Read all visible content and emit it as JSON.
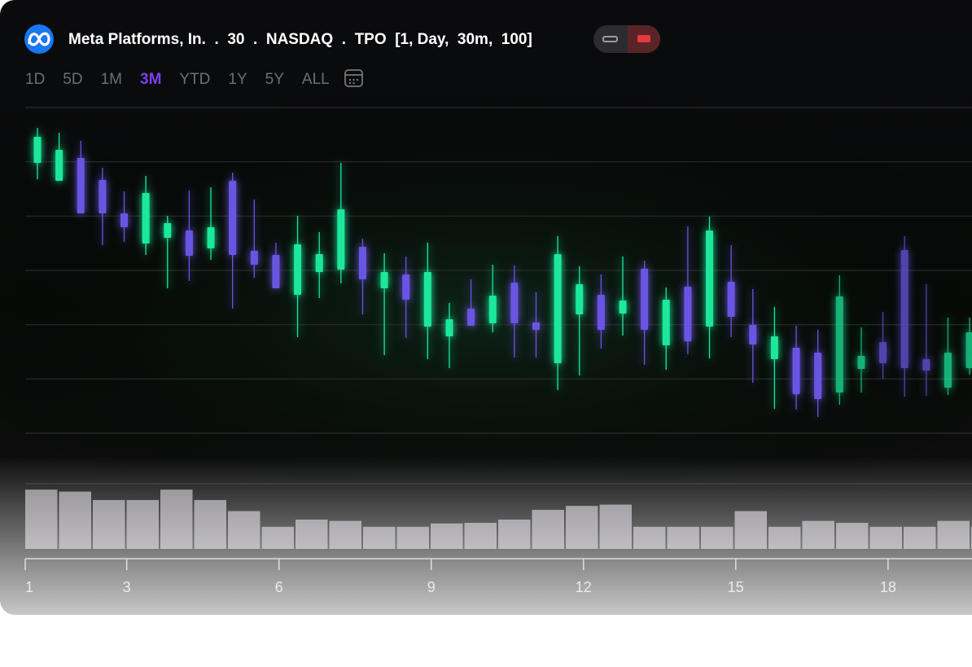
{
  "header": {
    "title": "Meta Platforms, In.  .  30  .  NASDAQ  .  TPO  [1, Day,  30m,  100]",
    "ranges": [
      "1D",
      "5D",
      "1M",
      "3M",
      "YTD",
      "1Y",
      "5Y",
      "ALL"
    ],
    "selected_range": "3M"
  },
  "chart_data": [
    {
      "type": "candlestick",
      "up_color": "#1ee89c",
      "down_color": "#6b55e3",
      "ylim": [
        0,
        100
      ],
      "grid": true,
      "open": [
        83,
        77.5,
        84.5,
        77.75,
        67.5,
        58.25,
        60,
        62.25,
        56.75,
        77.5,
        56,
        54.75,
        42.5,
        49.5,
        50.25,
        57.25,
        44.5,
        48.75,
        32.75,
        29.75,
        38.25,
        33.75,
        46.25,
        34,
        21.5,
        36.5,
        42.5,
        36.75,
        50.5,
        27,
        45,
        32.75,
        46.5,
        33.25,
        22.75,
        26.25,
        24.75,
        12.5,
        19.75,
        28,
        56.25,
        22.75,
        14,
        20
      ],
      "high": [
        93.75,
        92.25,
        89.75,
        81.5,
        74.25,
        79,
        66.75,
        74.5,
        75.5,
        80,
        71.75,
        58.5,
        66.75,
        61.75,
        83,
        59.75,
        55.25,
        54.25,
        58.5,
        40,
        47.25,
        51.75,
        51.5,
        43.25,
        60.5,
        51.25,
        48.75,
        54.25,
        53,
        44.75,
        63.5,
        66.5,
        57.75,
        44.25,
        38.75,
        33,
        31.75,
        48.5,
        32.5,
        37.25,
        60.5,
        45.75,
        35.5,
        35.5
      ],
      "low": [
        78,
        77.5,
        67.5,
        57.75,
        58.75,
        54.75,
        44.5,
        46.75,
        53.25,
        38.25,
        47.75,
        44.5,
        29.5,
        41.5,
        46,
        36.5,
        24,
        29.25,
        22.75,
        20,
        33,
        31,
        23.25,
        23.25,
        13.25,
        17.75,
        26,
        30,
        21,
        19.5,
        24.25,
        23,
        29.5,
        15.5,
        7.5,
        7.25,
        5,
        8.75,
        12.5,
        16.75,
        11.25,
        11.5,
        11.75,
        18
      ],
      "close": [
        91,
        87,
        67.5,
        67.5,
        63.25,
        73.75,
        64.5,
        54.5,
        63.25,
        54.75,
        51.75,
        44.5,
        58,
        55,
        68.75,
        47.25,
        49.5,
        41,
        49.5,
        35,
        33,
        42.25,
        33.75,
        31.75,
        55,
        45.75,
        31.75,
        40.75,
        31.75,
        41,
        28.25,
        62.25,
        35.75,
        27.25,
        29.75,
        12,
        10.5,
        42,
        23.75,
        21.5,
        20,
        19.25,
        24.75,
        31
      ]
    },
    {
      "type": "bar",
      "color": "#8a878d",
      "ylim": [
        0,
        100
      ],
      "xlim": [
        1,
        19
      ],
      "xticks": [
        1,
        3,
        6,
        9,
        12,
        15,
        18
      ],
      "values": [
        91,
        88,
        75,
        75,
        91,
        75,
        58,
        34,
        45,
        43,
        34,
        34,
        39,
        40,
        45,
        60,
        66,
        68,
        34,
        34,
        34,
        58,
        34,
        43,
        40,
        34,
        34,
        43,
        34
      ]
    }
  ]
}
